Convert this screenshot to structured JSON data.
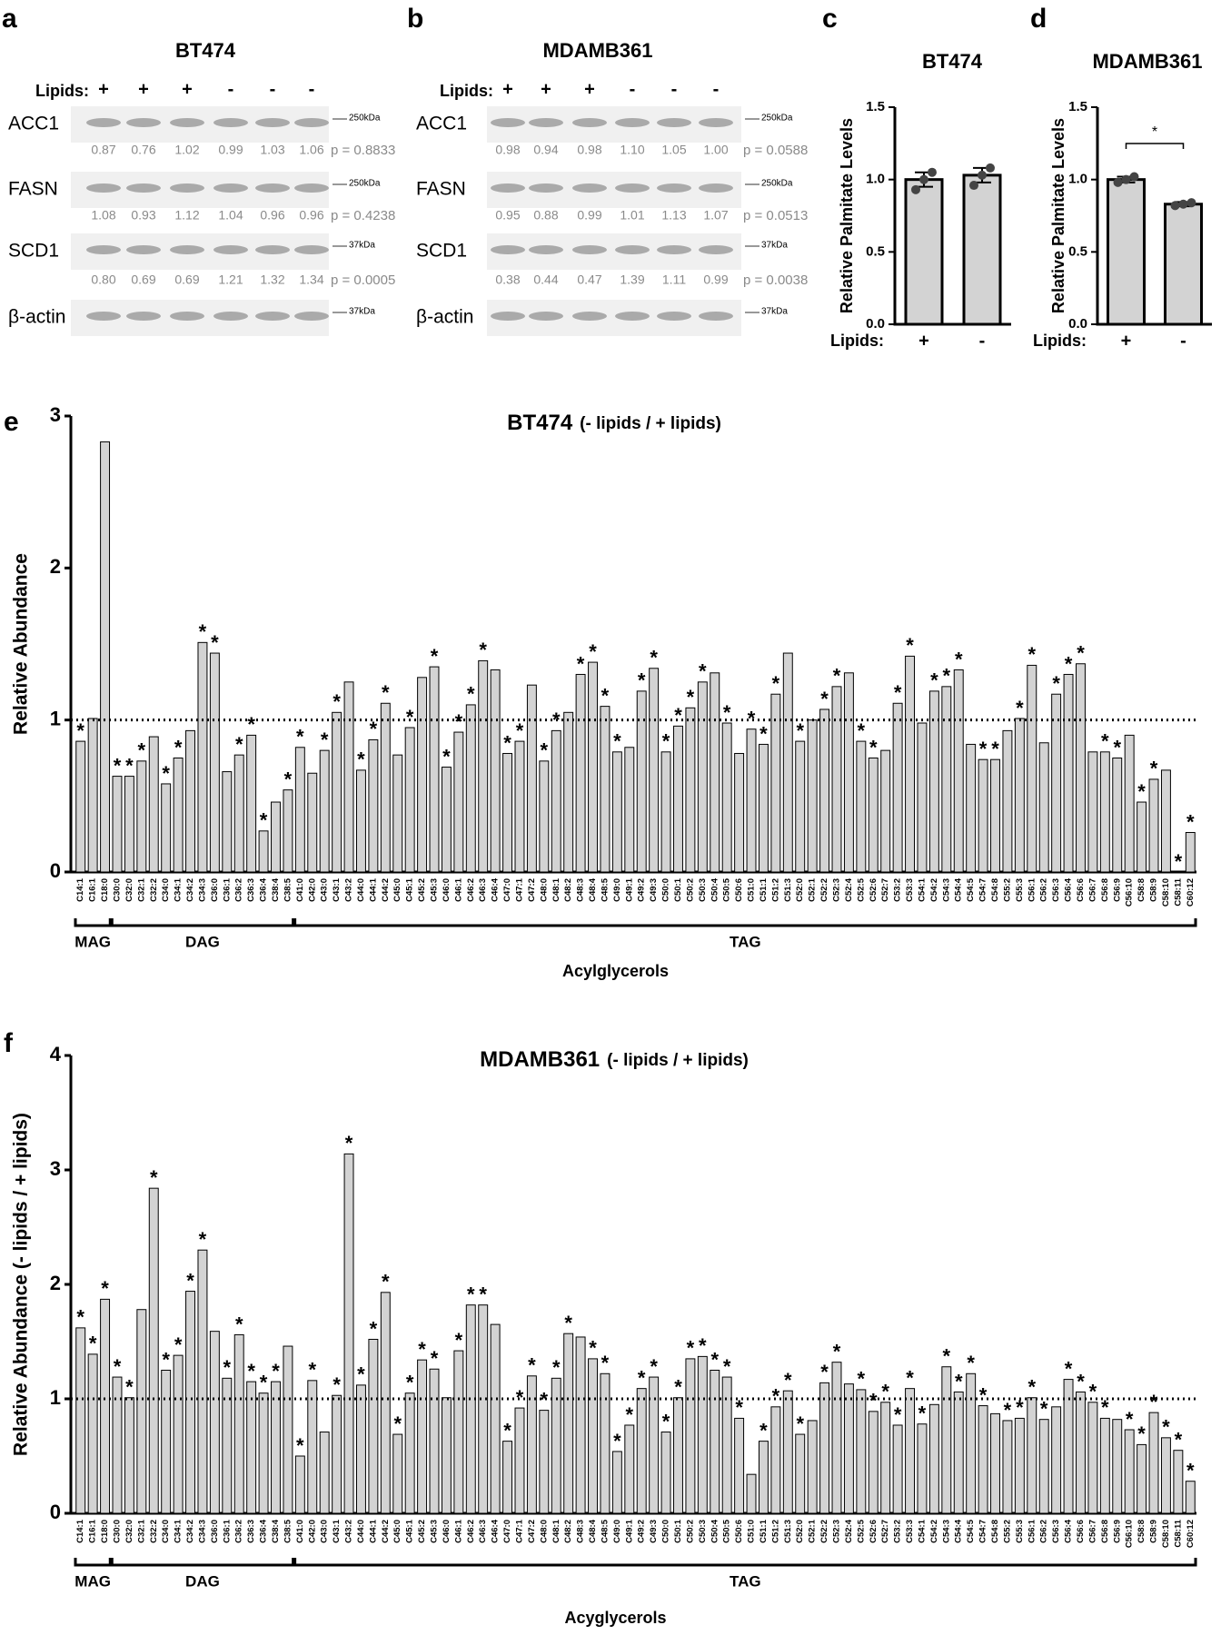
{
  "blots": [
    {
      "panel": "a",
      "title": "BT474",
      "lipids_label": "Lipids:",
      "lanes": [
        "+",
        "+",
        "+",
        "-",
        "-",
        "-"
      ],
      "rows": [
        {
          "protein": "ACC1",
          "marker": "250kDa",
          "quant": [
            "0.87",
            "0.76",
            "1.02",
            "0.99",
            "1.03",
            "1.06"
          ],
          "p": "p = 0.8833"
        },
        {
          "protein": "FASN",
          "marker": "250kDa",
          "quant": [
            "1.08",
            "0.93",
            "1.12",
            "1.04",
            "0.96",
            "0.96"
          ],
          "p": "p = 0.4238"
        },
        {
          "protein": "SCD1",
          "marker": "37kDa",
          "quant": [
            "0.80",
            "0.69",
            "0.69",
            "1.21",
            "1.32",
            "1.34"
          ],
          "p": "p = 0.0005"
        },
        {
          "protein": "β-actin",
          "marker": "37kDa"
        }
      ]
    },
    {
      "panel": "b",
      "title": "MDAMB361",
      "lipids_label": "Lipids:",
      "lanes": [
        "+",
        "+",
        "+",
        "-",
        "-",
        "-"
      ],
      "rows": [
        {
          "protein": "ACC1",
          "marker": "250kDa",
          "quant": [
            "0.98",
            "0.94",
            "0.98",
            "1.10",
            "1.05",
            "1.00"
          ],
          "p": "p = 0.0588"
        },
        {
          "protein": "FASN",
          "marker": "250kDa",
          "quant": [
            "0.95",
            "0.88",
            "0.99",
            "1.01",
            "1.13",
            "1.07"
          ],
          "p": "p = 0.0513"
        },
        {
          "protein": "SCD1",
          "marker": "37kDa",
          "quant": [
            "0.38",
            "0.44",
            "0.47",
            "1.39",
            "1.11",
            "0.99"
          ],
          "p": "p = 0.0038"
        },
        {
          "protein": "β-actin",
          "marker": "37kDa"
        }
      ]
    }
  ],
  "chart_data": [
    {
      "type": "bar",
      "panel": "c",
      "title": "BT474",
      "y_label": "Relative Palmitate Levels",
      "x_label": "Lipids:",
      "categories": [
        "+",
        "-"
      ],
      "values": [
        1.0,
        1.03
      ],
      "errors": [
        0.05,
        0.05
      ],
      "points": [
        [
          0.93,
          1.0,
          1.05
        ],
        [
          0.96,
          1.03,
          1.08
        ]
      ],
      "color": "#d3d3d3",
      "ylim": [
        0,
        1.5
      ],
      "yticks": [
        {
          "value": 0,
          "label": "0.0"
        },
        0.5,
        {
          "value": 1,
          "label": "1.0"
        },
        1.5
      ]
    },
    {
      "type": "bar",
      "panel": "d",
      "title": "MDAMB361",
      "y_label": "Relative Palmitate Levels",
      "x_label": "Lipids:",
      "categories": [
        "+",
        "-"
      ],
      "values": [
        1.0,
        0.83
      ],
      "errors": [
        0.02,
        0.015
      ],
      "points": [
        [
          0.98,
          1.0,
          1.02
        ],
        [
          0.82,
          0.83,
          0.84
        ]
      ],
      "color": "#d3d3d3",
      "significance_label": "*",
      "ylim": [
        0,
        1.5
      ],
      "yticks": [
        {
          "value": 0,
          "label": "0.0"
        },
        0.5,
        {
          "value": 1,
          "label": "1.0"
        },
        1.5
      ]
    },
    {
      "type": "bar",
      "panel": "e",
      "title": "BT474",
      "subtitle": "(- lipids / + lipids)",
      "y_label": "Relative Abundance",
      "x_label": "Acylglycerols",
      "categories": [
        "C14:1",
        "C16:1",
        "C18:0",
        "C30:0",
        "C32:0",
        "C32:1",
        "C32:2",
        "C34:0",
        "C34:1",
        "C34:2",
        "C34:3",
        "C36:0",
        "C36:1",
        "C36:2",
        "C36:3",
        "C36:4",
        "C38:4",
        "C38:5",
        "C41:0",
        "C42:0",
        "C43:0",
        "C43:1",
        "C43:2",
        "C44:0",
        "C44:1",
        "C44:2",
        "C45:0",
        "C45:1",
        "C45:2",
        "C45:3",
        "C46:0",
        "C46:1",
        "C46:2",
        "C46:3",
        "C46:4",
        "C47:0",
        "C47:1",
        "C47:2",
        "C48:0",
        "C48:1",
        "C48:2",
        "C48:3",
        "C48:4",
        "C48:5",
        "C49:0",
        "C49:1",
        "C49:2",
        "C49:3",
        "C50:0",
        "C50:1",
        "C50:2",
        "C50:3",
        "C50:4",
        "C50:5",
        "C50:6",
        "C51:0",
        "C51:1",
        "C51:2",
        "C51:3",
        "C52:0",
        "C52:1",
        "C52:2",
        "C52:3",
        "C52:4",
        "C52:5",
        "C52:6",
        "C52:7",
        "C53:2",
        "C53:3",
        "C54:1",
        "C54:2",
        "C54:3",
        "C54:4",
        "C54:5",
        "C54:7",
        "C54:8",
        "C55:2",
        "C55:3",
        "C56:1",
        "C56:2",
        "C56:3",
        "C56:4",
        "C56:6",
        "C56:7",
        "C56:8",
        "C56:9",
        "C56:10",
        "C58:8",
        "C58:9",
        "C58:10",
        "C58:11",
        "C60:12"
      ],
      "values": [
        0.86,
        1.01,
        2.83,
        0.63,
        0.63,
        0.73,
        0.89,
        0.58,
        0.75,
        0.93,
        1.51,
        1.44,
        0.66,
        0.77,
        0.9,
        0.27,
        0.46,
        0.54,
        0.82,
        0.65,
        0.8,
        1.05,
        1.25,
        0.67,
        0.87,
        1.11,
        0.77,
        0.95,
        1.28,
        1.35,
        0.69,
        0.92,
        1.1,
        1.39,
        1.33,
        0.78,
        0.86,
        1.23,
        0.73,
        0.93,
        1.05,
        1.3,
        1.38,
        1.09,
        0.79,
        0.82,
        1.19,
        1.34,
        0.79,
        0.96,
        1.08,
        1.25,
        1.31,
        0.98,
        0.78,
        0.94,
        0.84,
        1.17,
        1.44,
        0.86,
        1.0,
        1.07,
        1.22,
        1.31,
        0.86,
        0.75,
        0.8,
        1.11,
        1.42,
        0.98,
        1.19,
        1.22,
        1.33,
        0.84,
        0.74,
        0.74,
        0.93,
        1.01,
        1.36,
        0.85,
        1.17,
        1.3,
        1.37,
        0.79,
        0.79,
        0.75,
        0.9,
        0.46,
        0.61,
        0.67,
        0,
        0.26
      ],
      "color": "#d3d3d3",
      "reference_line": 1,
      "significance_label": "*",
      "significant": [
        0,
        3,
        4,
        5,
        7,
        8,
        10,
        11,
        13,
        14,
        15,
        17,
        18,
        20,
        21,
        23,
        24,
        25,
        27,
        29,
        30,
        31,
        32,
        33,
        35,
        36,
        38,
        39,
        41,
        42,
        43,
        44,
        46,
        47,
        48,
        49,
        50,
        51,
        53,
        55,
        56,
        57,
        59,
        61,
        62,
        64,
        65,
        67,
        68,
        70,
        71,
        72,
        74,
        75,
        77,
        78,
        80,
        81,
        82,
        84,
        85,
        87,
        88,
        90,
        91
      ],
      "groups": [
        {
          "label": "MAG",
          "from": "C14:1",
          "to": "C18:0"
        },
        {
          "label": "DAG",
          "from": "C30:0",
          "to": "C38:5"
        },
        {
          "label": "TAG",
          "from": "C41:0",
          "to": "C60:12"
        }
      ],
      "ylim": [
        0,
        3
      ],
      "yticks": [
        0,
        1,
        2,
        3
      ]
    },
    {
      "type": "bar",
      "panel": "f",
      "title": "MDAMB361",
      "subtitle": "(- lipids / + lipids)",
      "y_label": "Relative Abundance (- lipids / + lipids)",
      "x_label": "Acyglycerols",
      "categories": [
        "C14:1",
        "C16:1",
        "C18:0",
        "C30:0",
        "C32:0",
        "C32:1",
        "C32:2",
        "C34:0",
        "C34:1",
        "C34:2",
        "C34:3",
        "C36:0",
        "C36:1",
        "C36:2",
        "C36:3",
        "C36:4",
        "C38:4",
        "C38:5",
        "C41:0",
        "C42:0",
        "C43:0",
        "C43:1",
        "C43:2",
        "C44:0",
        "C44:1",
        "C44:2",
        "C45:0",
        "C45:1",
        "C45:2",
        "C45:3",
        "C46:0",
        "C46:1",
        "C46:2",
        "C46:3",
        "C46:4",
        "C47:0",
        "C47:1",
        "C47:2",
        "C48:0",
        "C48:1",
        "C48:2",
        "C48:3",
        "C48:4",
        "C48:5",
        "C49:0",
        "C49:1",
        "C49:2",
        "C49:3",
        "C50:0",
        "C50:1",
        "C50:2",
        "C50:3",
        "C50:4",
        "C50:5",
        "C50:6",
        "C51:0",
        "C51:1",
        "C51:2",
        "C51:3",
        "C52:0",
        "C52:1",
        "C52:2",
        "C52:3",
        "C52:4",
        "C52:5",
        "C52:6",
        "C52:7",
        "C53:2",
        "C53:3",
        "C54:1",
        "C54:2",
        "C54:3",
        "C54:4",
        "C54:5",
        "C54:7",
        "C54:8",
        "C55:2",
        "C55:3",
        "C56:1",
        "C56:2",
        "C56:3",
        "C56:4",
        "C56:6",
        "C56:7",
        "C56:8",
        "C56:9",
        "C56:10",
        "C58:8",
        "C58:9",
        "C58:10",
        "C58:11",
        "C60:12"
      ],
      "values": [
        1.62,
        1.39,
        1.87,
        1.19,
        1.01,
        1.78,
        2.84,
        1.25,
        1.38,
        1.94,
        2.3,
        1.59,
        1.18,
        1.56,
        1.15,
        1.05,
        1.15,
        1.46,
        0.5,
        1.16,
        0.71,
        1.03,
        3.14,
        1.12,
        1.52,
        1.93,
        0.69,
        1.05,
        1.34,
        1.26,
        1.01,
        1.42,
        1.82,
        1.82,
        1.65,
        0.63,
        0.92,
        1.2,
        0.9,
        1.18,
        1.57,
        1.54,
        1.35,
        1.22,
        0.54,
        0.77,
        1.09,
        1.19,
        0.71,
        1.01,
        1.35,
        1.37,
        1.25,
        1.19,
        0.83,
        0.34,
        0.63,
        0.93,
        1.07,
        0.69,
        0.81,
        1.14,
        1.32,
        1.13,
        1.08,
        0.89,
        0.97,
        0.77,
        1.09,
        0.78,
        0.95,
        1.28,
        1.06,
        1.22,
        0.94,
        0.87,
        0.81,
        0.83,
        1.01,
        0.82,
        0.93,
        1.17,
        1.06,
        0.97,
        0.83,
        0.82,
        0.73,
        0.6,
        0.88,
        0.66,
        0.55,
        0.28
      ],
      "color": "#d3d3d3",
      "reference_line": 1,
      "significance_label": "*",
      "significant": [
        0,
        1,
        2,
        3,
        4,
        6,
        7,
        8,
        9,
        10,
        12,
        13,
        14,
        15,
        16,
        18,
        19,
        21,
        22,
        23,
        24,
        25,
        26,
        27,
        28,
        29,
        31,
        32,
        33,
        35,
        36,
        37,
        38,
        39,
        40,
        42,
        43,
        44,
        45,
        46,
        47,
        48,
        49,
        50,
        51,
        52,
        53,
        54,
        56,
        57,
        58,
        59,
        61,
        62,
        64,
        65,
        66,
        67,
        68,
        69,
        71,
        72,
        73,
        74,
        76,
        77,
        78,
        79,
        81,
        82,
        83,
        84,
        86,
        87,
        88,
        89,
        90,
        91
      ],
      "groups": [
        {
          "label": "MAG",
          "from": "C14:1",
          "to": "C18:0"
        },
        {
          "label": "DAG",
          "from": "C30:0",
          "to": "C38:5"
        },
        {
          "label": "TAG",
          "from": "C41:0",
          "to": "C60:12"
        }
      ],
      "ylim": [
        0,
        4
      ],
      "yticks": [
        0,
        1,
        2,
        3,
        4
      ]
    }
  ]
}
